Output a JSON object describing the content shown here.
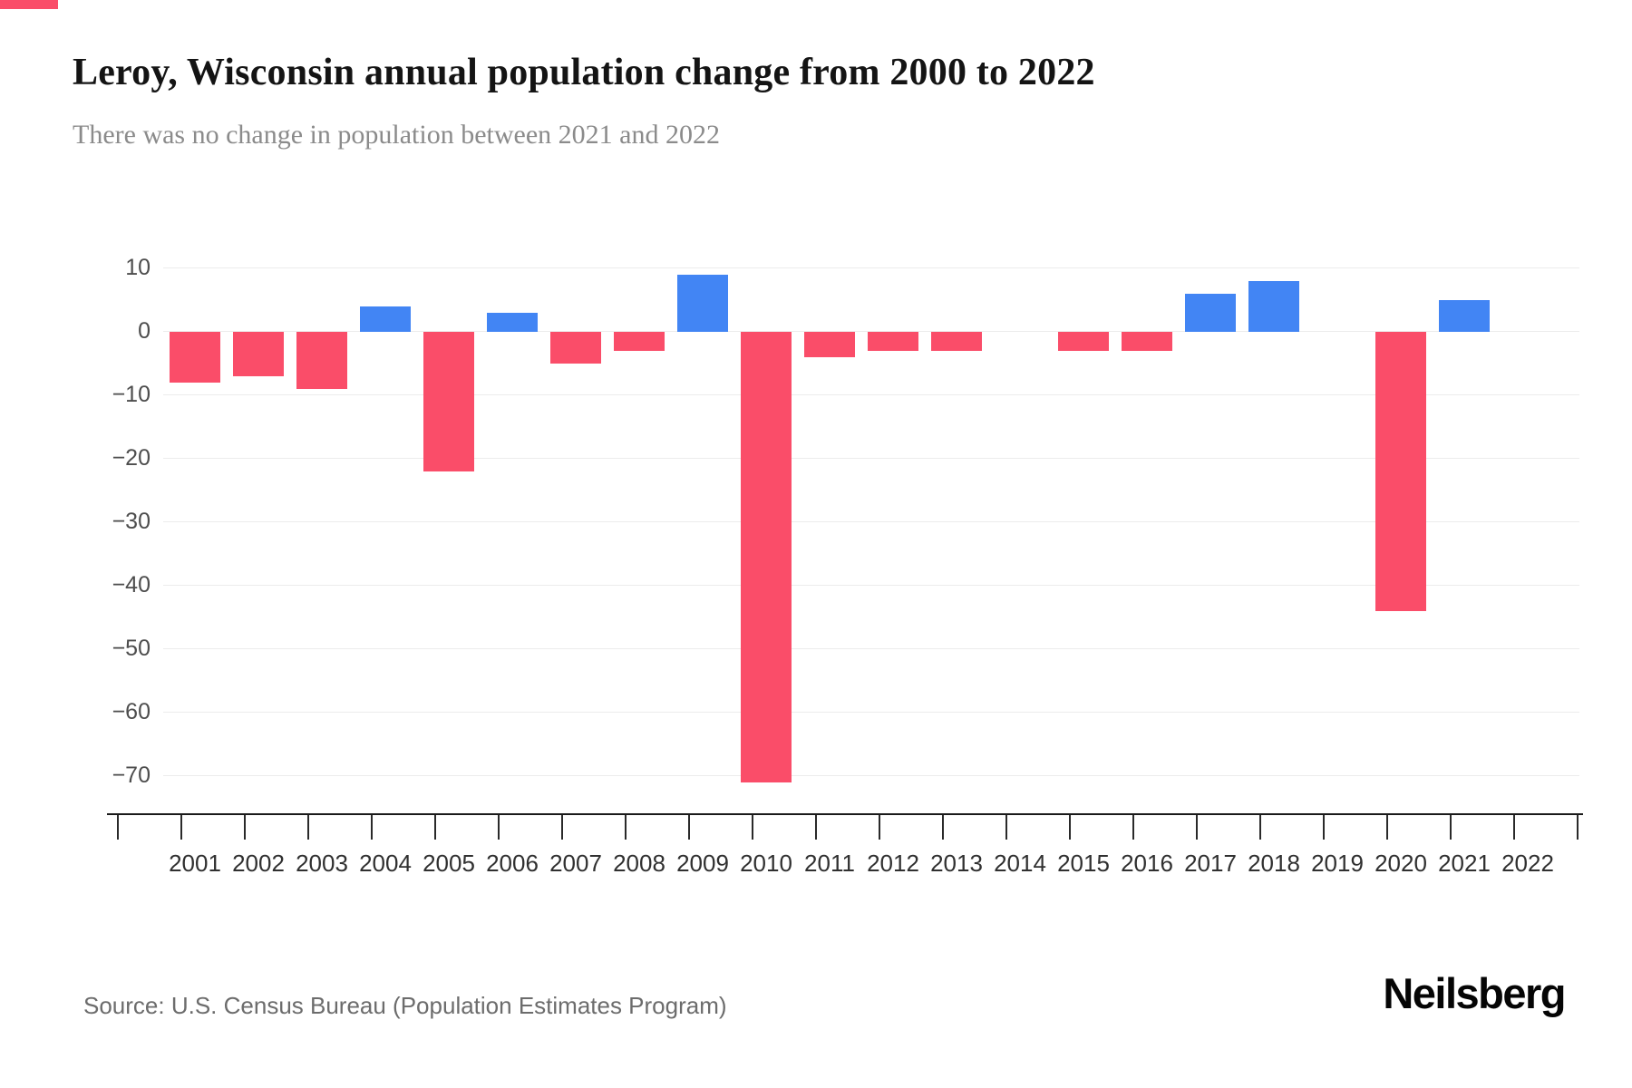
{
  "page": {
    "accent_color": "#fa4d69",
    "background": "#ffffff",
    "source": "Source: U.S. Census Bureau (Population Estimates Program)",
    "brand": "Neilsberg"
  },
  "chart_data": {
    "type": "bar",
    "title": "Leroy, Wisconsin annual population change from 2000 to 2022",
    "subtitle": "There was no change in population between 2021 and 2022",
    "categories": [
      "2001",
      "2002",
      "2003",
      "2004",
      "2005",
      "2006",
      "2007",
      "2008",
      "2009",
      "2010",
      "2011",
      "2012",
      "2013",
      "2014",
      "2015",
      "2016",
      "2017",
      "2018",
      "2019",
      "2020",
      "2021",
      "2022"
    ],
    "values": [
      -8,
      -7,
      -9,
      4,
      -22,
      3,
      -5,
      -3,
      9,
      -71,
      -4,
      -3,
      -3,
      0,
      -3,
      -3,
      6,
      8,
      0,
      -44,
      5,
      0
    ],
    "xlabel": "",
    "ylabel": "",
    "yticks": [
      10,
      0,
      -10,
      -20,
      -30,
      -40,
      -50,
      -60,
      -70
    ],
    "ylim": [
      -75,
      12
    ],
    "grid": true,
    "legend": false,
    "colors": {
      "positive": "#4285f4",
      "negative": "#fa4d69"
    }
  }
}
